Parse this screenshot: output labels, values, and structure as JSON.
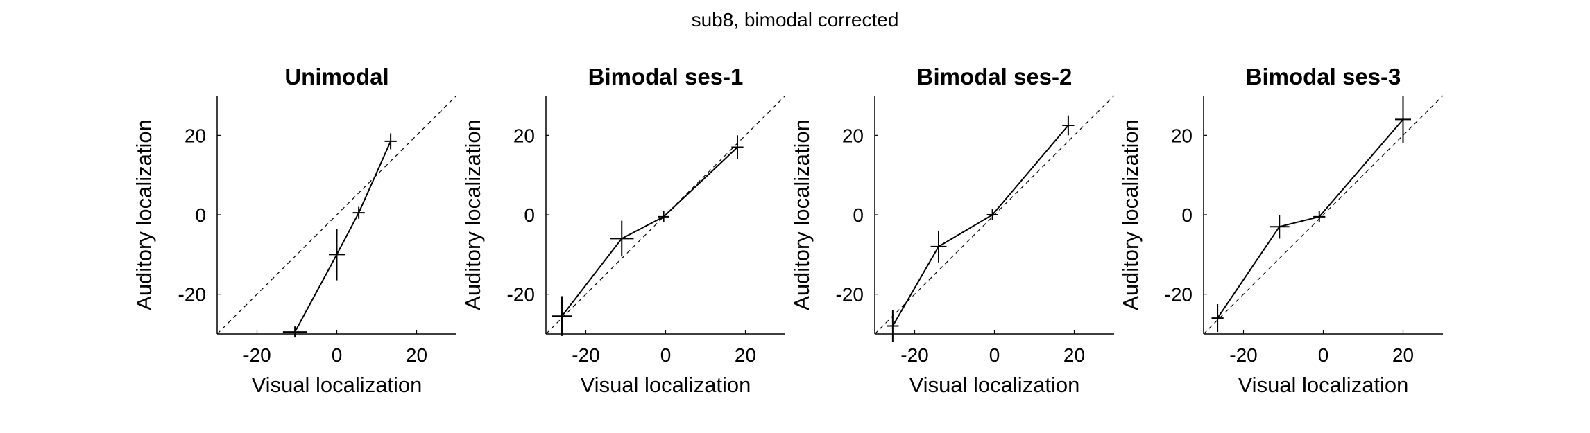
{
  "figure": {
    "title": "sub8, bimodal corrected"
  },
  "chart_data": [
    {
      "type": "line",
      "title": "Unimodal",
      "xlabel": "Visual localization",
      "ylabel": "Auditory localization",
      "xlim": [
        -30,
        30
      ],
      "ylim": [
        -30,
        30
      ],
      "xticks": [
        -20,
        0,
        20
      ],
      "yticks": [
        -20,
        0,
        20
      ],
      "identity_line": true,
      "points": [
        {
          "x": -10.5,
          "y": -29.5,
          "xerr": 3.0,
          "yerr": 1.0
        },
        {
          "x": 0.0,
          "y": -10.0,
          "xerr": 2.0,
          "yerr": 6.5
        },
        {
          "x": 5.5,
          "y": 0.5,
          "xerr": 1.5,
          "yerr": 1.5
        },
        {
          "x": 13.5,
          "y": 18.5,
          "xerr": 1.5,
          "yerr": 2.0
        }
      ]
    },
    {
      "type": "line",
      "title": "Bimodal ses-1",
      "xlabel": "Visual localization",
      "ylabel": "Auditory localization",
      "xlim": [
        -30,
        30
      ],
      "ylim": [
        -30,
        30
      ],
      "xticks": [
        -20,
        0,
        20
      ],
      "yticks": [
        -20,
        0,
        20
      ],
      "identity_line": true,
      "points": [
        {
          "x": -26.0,
          "y": -25.5,
          "xerr": 2.5,
          "yerr": 5.0
        },
        {
          "x": -11.0,
          "y": -6.0,
          "xerr": 3.0,
          "yerr": 4.5
        },
        {
          "x": -0.5,
          "y": -0.5,
          "xerr": 0.8,
          "yerr": 0.8
        },
        {
          "x": 18.0,
          "y": 17.0,
          "xerr": 1.5,
          "yerr": 3.0
        }
      ]
    },
    {
      "type": "line",
      "title": "Bimodal ses-2",
      "xlabel": "Visual localization",
      "ylabel": "Auditory localization",
      "xlim": [
        -30,
        30
      ],
      "ylim": [
        -30,
        30
      ],
      "xticks": [
        -20,
        0,
        20
      ],
      "yticks": [
        -20,
        0,
        20
      ],
      "identity_line": true,
      "points": [
        {
          "x": -25.5,
          "y": -28.0,
          "xerr": 1.5,
          "yerr": 4.0
        },
        {
          "x": -14.0,
          "y": -8.0,
          "xerr": 2.0,
          "yerr": 4.0
        },
        {
          "x": -0.5,
          "y": 0.0,
          "xerr": 0.8,
          "yerr": 0.8
        },
        {
          "x": 18.5,
          "y": 22.5,
          "xerr": 1.5,
          "yerr": 2.5
        }
      ]
    },
    {
      "type": "line",
      "title": "Bimodal ses-3",
      "xlabel": "Visual localization",
      "ylabel": "Auditory localization",
      "xlim": [
        -30,
        30
      ],
      "ylim": [
        -30,
        30
      ],
      "xticks": [
        -20,
        0,
        20
      ],
      "yticks": [
        -20,
        0,
        20
      ],
      "identity_line": true,
      "points": [
        {
          "x": -26.5,
          "y": -26.0,
          "xerr": 1.5,
          "yerr": 3.5
        },
        {
          "x": -11.0,
          "y": -3.0,
          "xerr": 2.5,
          "yerr": 3.0
        },
        {
          "x": -1.0,
          "y": -0.5,
          "xerr": 1.5,
          "yerr": 0.8
        },
        {
          "x": 20.0,
          "y": 24.0,
          "xerr": 2.0,
          "yerr": 6.0
        }
      ]
    }
  ]
}
